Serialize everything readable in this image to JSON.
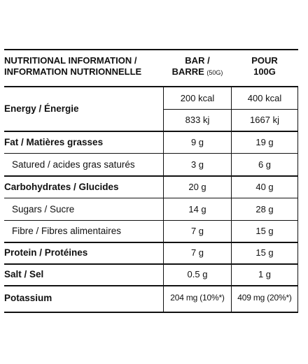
{
  "header": {
    "label_line1": "NUTRITIONAL INFORMATION /",
    "label_line2": "INFORMATION NUTRIONNELLE",
    "col1_line1": "BAR /",
    "col1_line2_main": "BARRE ",
    "col1_line2_small": "(50G)",
    "col2_line1": "POUR",
    "col2_line2": "100G"
  },
  "energy": {
    "label": "Energy / Énergie",
    "kcal_bar": "200 kcal",
    "kcal_100g": "400 kcal",
    "kj_bar": "833 kj",
    "kj_100g": "1667 kj"
  },
  "rows": [
    {
      "label": "Fat / Matières grasses",
      "bar": "9 g",
      "per100": "19 g"
    },
    {
      "label": "Satured / acides gras saturés",
      "bar": "3 g",
      "per100": "6 g"
    },
    {
      "label": "Carbohydrates / Glucides",
      "bar": "20 g",
      "per100": "40 g"
    },
    {
      "label": "Sugars / Sucre",
      "bar": "14 g",
      "per100": "28 g"
    },
    {
      "label": "Fibre / Fibres alimentaires",
      "bar": "7 g",
      "per100": "15 g"
    },
    {
      "label": "Protein / Protéines",
      "bar": "7 g",
      "per100": "15 g"
    },
    {
      "label": "Salt / Sel",
      "bar": "0.5 g",
      "per100": "1 g"
    },
    {
      "label": "Potassium",
      "bar": "204 mg (10%*)",
      "per100": "409 mg (20%*)"
    }
  ]
}
